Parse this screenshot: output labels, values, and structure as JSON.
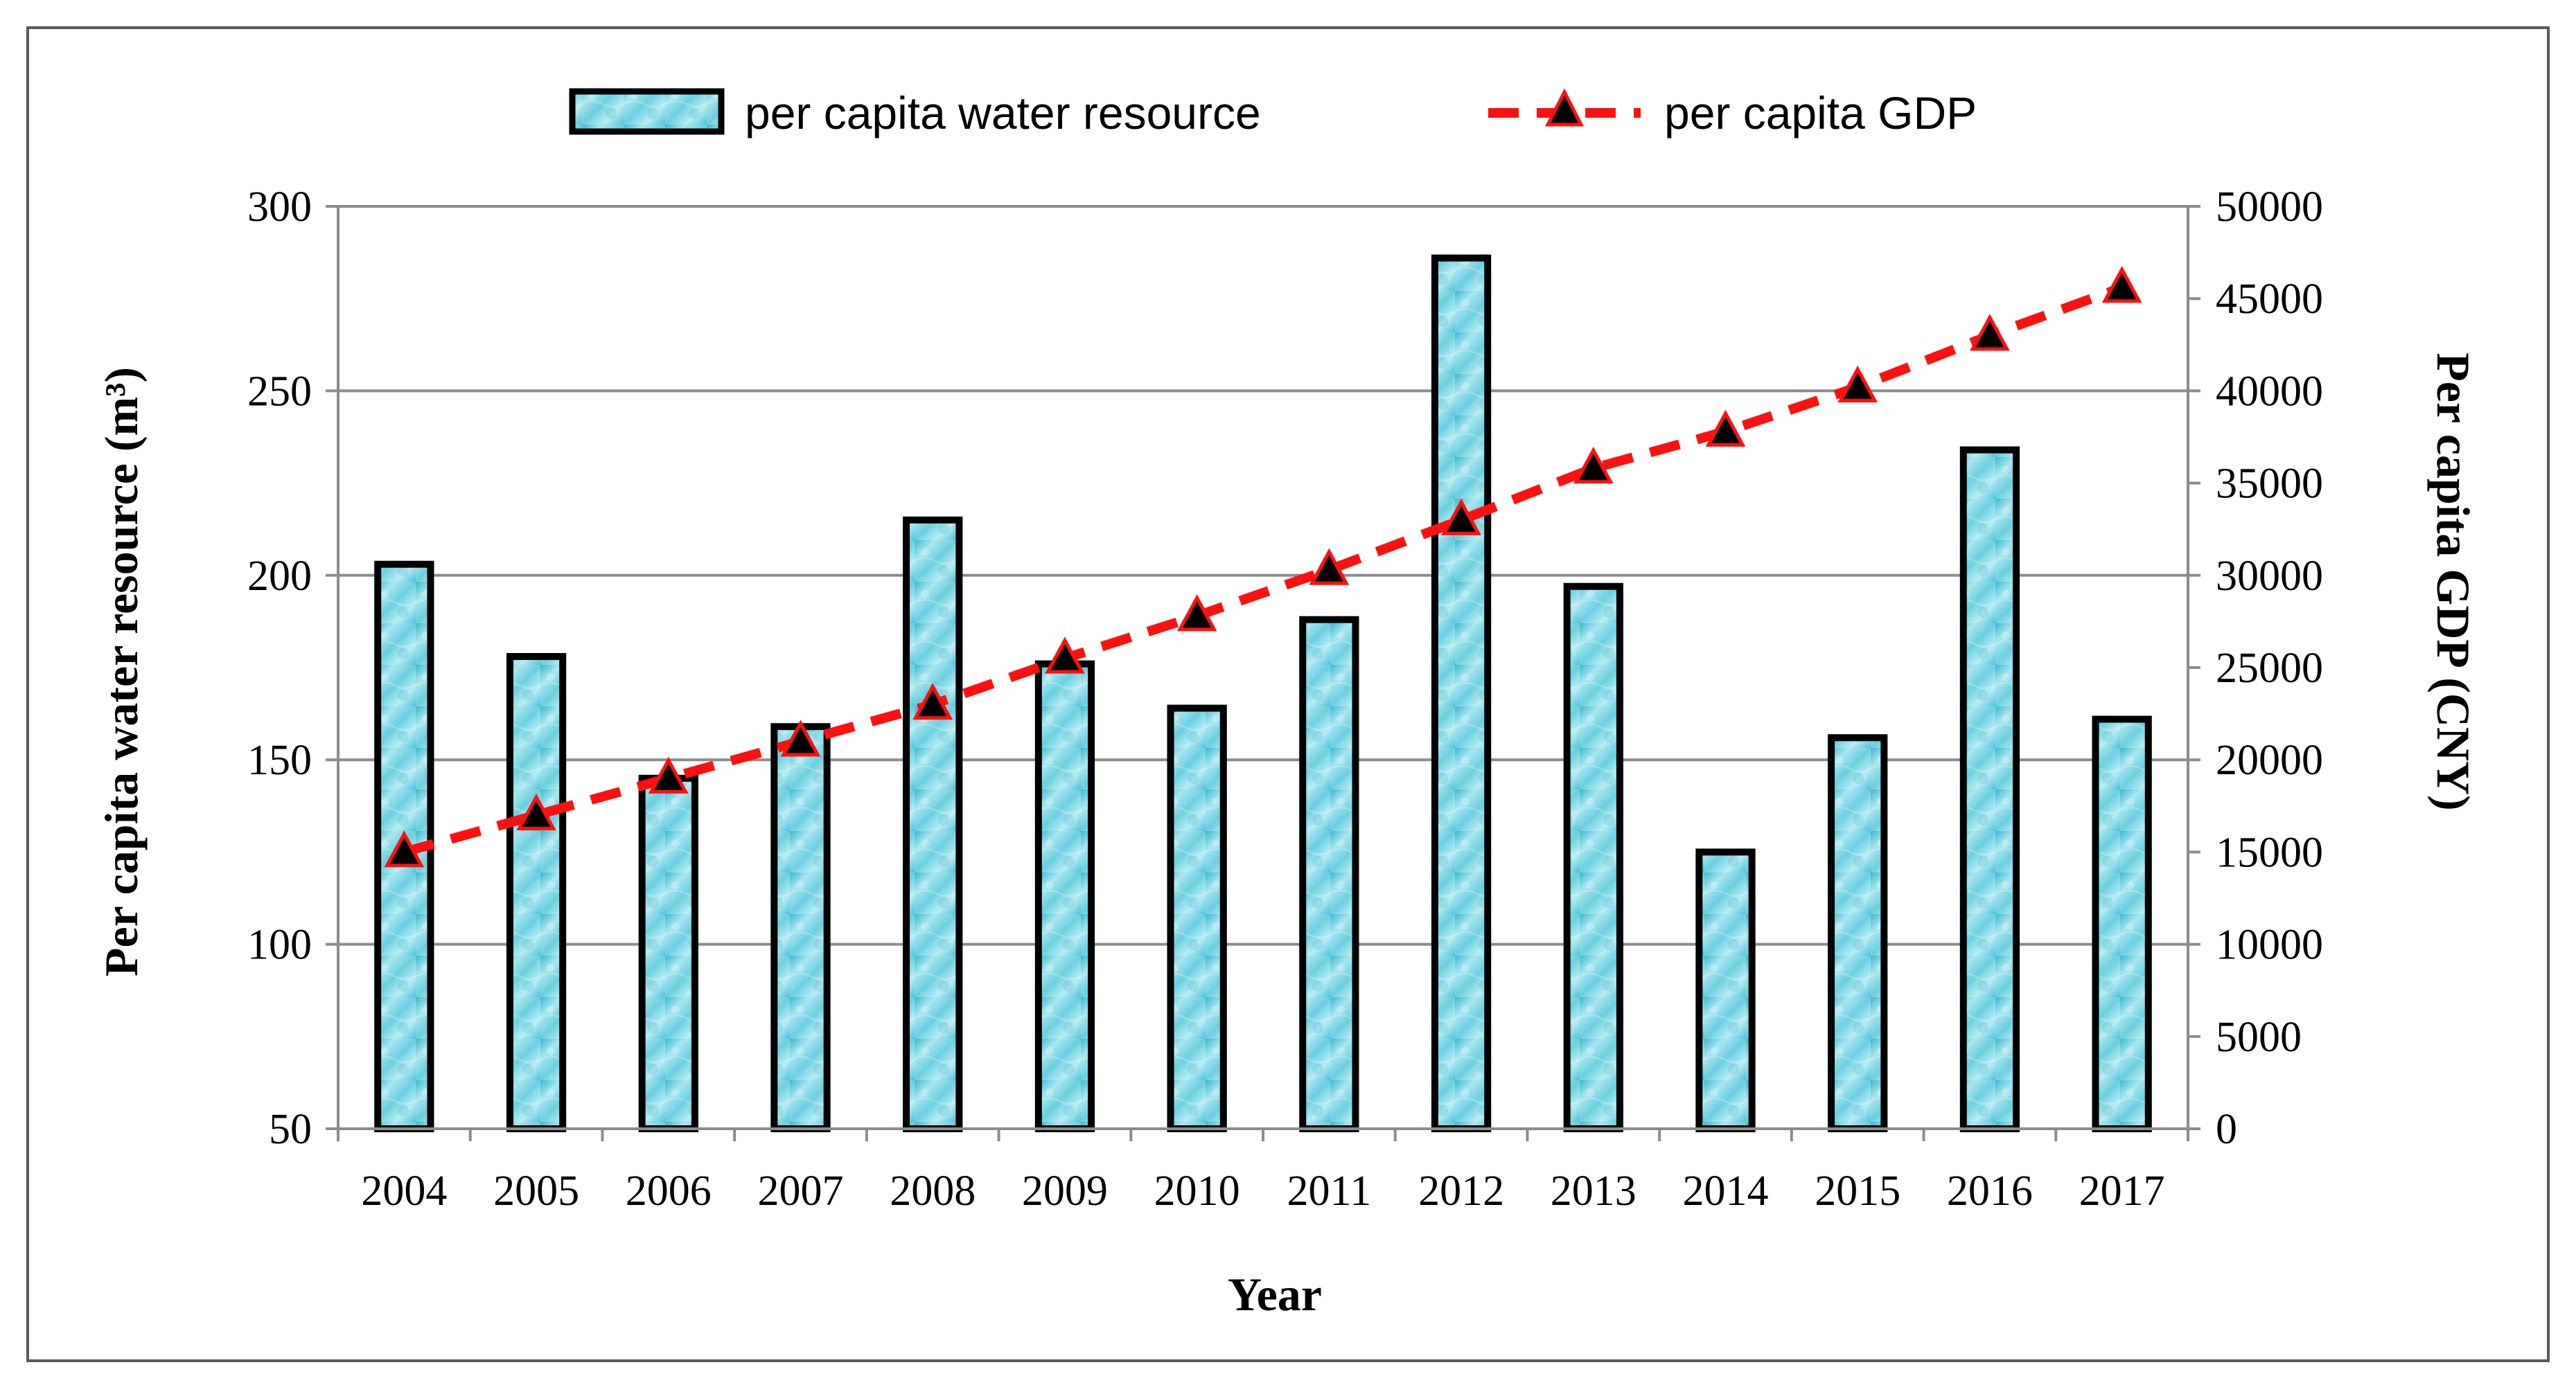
{
  "chart_data": {
    "type": "bar+line",
    "categories": [
      "2004",
      "2005",
      "2006",
      "2007",
      "2008",
      "2009",
      "2010",
      "2011",
      "2012",
      "2013",
      "2014",
      "2015",
      "2016",
      "2017"
    ],
    "series": [
      {
        "name": "per capita water resource",
        "type": "bar",
        "axis": "left",
        "values": [
          203,
          178,
          145,
          159,
          215,
          176,
          164,
          188,
          286,
          197,
          125,
          156,
          234,
          161
        ],
        "color": "#7fd6e4"
      },
      {
        "name": "per capita GDP",
        "type": "line",
        "axis": "right",
        "values": [
          15000,
          17000,
          19000,
          21000,
          23000,
          25500,
          27800,
          30300,
          33000,
          35800,
          37800,
          40200,
          43000,
          45600
        ],
        "color": "#ff1010",
        "marker": "triangle"
      }
    ],
    "xlabel": "Year",
    "ylabel_left": "Per capita water resource (m³)",
    "ylabel_right": "Per capita GDP (CNY)",
    "ylim_left": [
      50,
      300
    ],
    "yticks_left": [
      50,
      100,
      150,
      200,
      250,
      300
    ],
    "ylim_right": [
      0,
      50000
    ],
    "yticks_right": [
      0,
      5000,
      10000,
      15000,
      20000,
      25000,
      30000,
      35000,
      40000,
      45000,
      50000
    ],
    "grid": true,
    "legend": "top-center"
  }
}
